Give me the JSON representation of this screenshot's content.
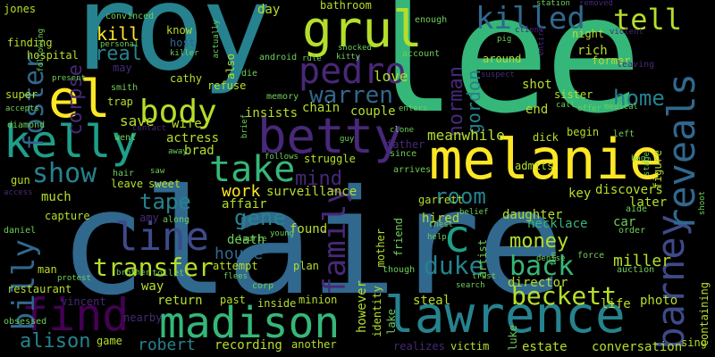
{
  "colors": {
    "background": "#000000",
    "palette": [
      "#440154",
      "#482878",
      "#3e4a89",
      "#31688e",
      "#26828e",
      "#1f9e89",
      "#35b779",
      "#6ece58",
      "#b5de2b",
      "#fde725"
    ]
  },
  "words": {
    "claire": "claire",
    "lee": "lee",
    "roy": "roy",
    "melanie": "melanie",
    "lawrence": "lawrence",
    "madison": "madison",
    "betty": "betty",
    "kelly": "kelly",
    "grul": "grul",
    "find": "find",
    "el": "el",
    "pedro": "pedro",
    "body": "body",
    "take": "take",
    "barney": "barney",
    "reveals": "reveals",
    "killed": "killed",
    "tell": "tell",
    "line": "line",
    "c": "c",
    "billy": "billy",
    "family": "family",
    "foster": "foster",
    "transfer": "transfer",
    "warren": "warren",
    "show": "show",
    "beckett": "beckett",
    "back": "back",
    "duke": "duke",
    "money": "money",
    "alison": "alison",
    "home": "home",
    "corpse": "corpse",
    "kill": "kill",
    "real": "real",
    "norman": "norman",
    "gordon": "gordon",
    "mind": "mind",
    "room": "room",
    "gene": "gene",
    "tape": "tape",
    "miller": "miller",
    "work": "work",
    "house": "house",
    "robert": "robert",
    "love": "love",
    "meanwhile": "meanwhile",
    "death": "death",
    "chain": "chain",
    "couple": "couple",
    "insists": "insists",
    "save": "save",
    "wife": "wife",
    "actress": "actress",
    "brad": "brad",
    "found": "found",
    "director": "director",
    "surveillance": "surveillance",
    "necklace": "necklace",
    "daughter": "daughter",
    "key": "key",
    "discovers": "discovers",
    "later": "later",
    "hired": "hired",
    "garrett": "garrett",
    "admits": "admits",
    "car": "car",
    "end": "end",
    "sister": "sister",
    "shot": "shot",
    "rich": "rich",
    "night": "night",
    "jones": "jones",
    "finding": "finding",
    "hospital": "hospital",
    "convinced": "convinced",
    "personal": "personal",
    "killer": "killer",
    "host": "host",
    "know": "know",
    "cathy": "cathy",
    "refuse": "refuse",
    "may": "may",
    "smith": "smith",
    "trap": "trap",
    "super": "super",
    "diamond": "diamond",
    "accepts": "accepts",
    "present": "present",
    "went": "went",
    "contact": "contact",
    "hair": "hair",
    "away": "away",
    "saw": "saw",
    "leave": "leave",
    "sweet": "sweet",
    "much": "much",
    "gun": "gun",
    "capture": "capture",
    "man": "man",
    "daniel": "daniel",
    "access": "access",
    "restaurant": "restaurant",
    "obsessed": "obsessed",
    "vincent": "vincent",
    "protest": "protest",
    "brother": "brother",
    "toilet": "toilet",
    "way": "way",
    "amy": "amy",
    "along": "along",
    "attempt": "attempt",
    "past": "past",
    "return": "return",
    "game": "game",
    "nearby": "nearby",
    "recording": "recording",
    "another": "another",
    "minion": "minion",
    "inside": "inside",
    "plan": "plan",
    "corp": "corp",
    "flees": "flees",
    "laurie": "laurie",
    "young": "young",
    "affair": "affair",
    "day": "day",
    "bathroom": "bathroom",
    "memory": "memory",
    "android": "android",
    "rule": "rule",
    "shocked": "shocked",
    "kitty": "kitty",
    "account": "account",
    "enough": "enough",
    "station": "station",
    "removed": "removed",
    "violent": "violent",
    "client": "client",
    "pig": "pig",
    "suspect": "suspect",
    "around": "around",
    "former": "former",
    "leaving": "leaving",
    "offer": "offer",
    "call": "call",
    "medical": "medical",
    "left": "left",
    "bag": "bag",
    "begin": "begin",
    "dick": "dick",
    "figure": "figure",
    "father": "father",
    "clone": "clone",
    "since": "since",
    "arrives": "arrives",
    "guy": "guy",
    "follows": "follows",
    "struggle": "struggle",
    "mother": "mother",
    "friend": "friend",
    "artist": "artist",
    "belief": "belief",
    "chest": "chest",
    "help": "help",
    "denise": "denise",
    "force": "force",
    "though": "though",
    "trust": "trust",
    "search": "search",
    "steal": "steal",
    "lake": "lake",
    "identity": "identity",
    "however": "however",
    "realizes": "realizes",
    "victim": "victim",
    "luke": "luke",
    "estate": "estate",
    "conversation": "conversation",
    "sing": "sing",
    "containing": "containing",
    "photo": "photo",
    "life": "life",
    "auction": "auction",
    "aide": "aide",
    "order": "order",
    "shoot": "shoot",
    "entire": "entire",
    "stage": "stage",
    "enters": "enters",
    "die": "die",
    "also": "also",
    "brief": "brief",
    "actually": "actually",
    "following": "following",
    "fun": "fun"
  }
}
